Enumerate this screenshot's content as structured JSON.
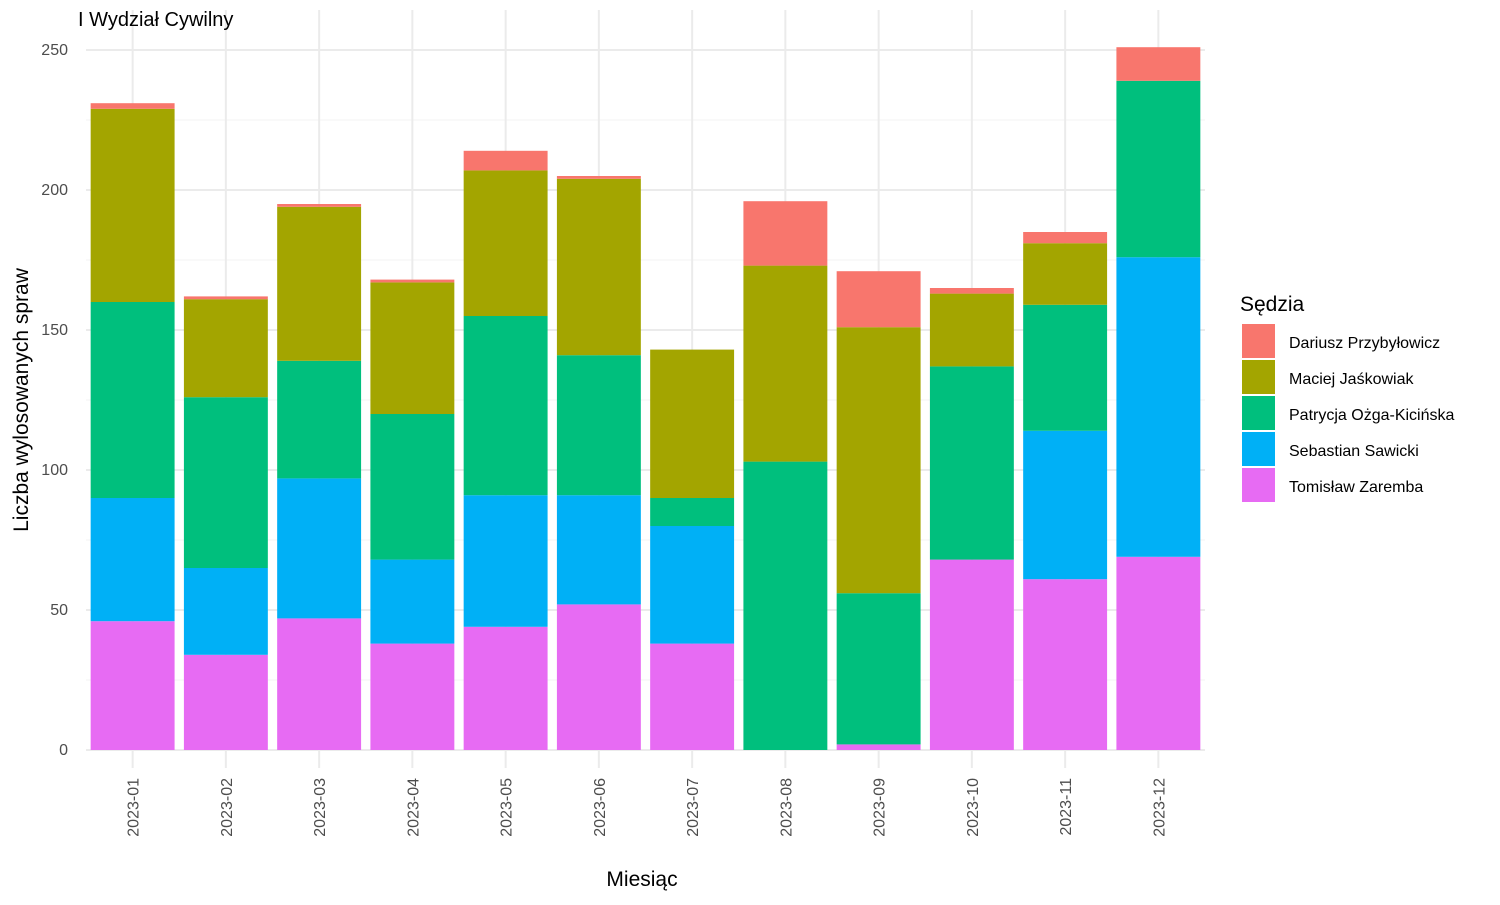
{
  "chart_data": {
    "type": "bar",
    "stacked": true,
    "title": "I Wydział Cywilny",
    "xlabel": "Miesiąc",
    "ylabel": "Liczba wylosowanych spraw",
    "ylim": [
      0,
      255
    ],
    "yticks": [
      0,
      50,
      100,
      150,
      200,
      250
    ],
    "grid": true,
    "legend": {
      "title": "Sędzia",
      "position": "right"
    },
    "categories": [
      "2023-01",
      "2023-02",
      "2023-03",
      "2023-04",
      "2023-05",
      "2023-06",
      "2023-07",
      "2023-08",
      "2023-09",
      "2023-10",
      "2023-11",
      "2023-12"
    ],
    "series": [
      {
        "name": "Tomisław Zaremba",
        "color": "#E76BF3",
        "values": [
          46,
          34,
          47,
          38,
          44,
          52,
          38,
          0,
          2,
          68,
          61,
          69
        ]
      },
      {
        "name": "Sebastian Sawicki",
        "color": "#00B0F6",
        "values": [
          44,
          31,
          50,
          30,
          47,
          39,
          42,
          0,
          0,
          0,
          53,
          107
        ]
      },
      {
        "name": "Patrycja Ożga-Kicińska",
        "color": "#00BF7D",
        "values": [
          70,
          61,
          42,
          52,
          64,
          50,
          10,
          103,
          54,
          69,
          45,
          63
        ]
      },
      {
        "name": "Maciej Jaśkowiak",
        "color": "#A3A500",
        "values": [
          69,
          35,
          55,
          47,
          52,
          63,
          53,
          70,
          95,
          26,
          22,
          0
        ]
      },
      {
        "name": "Dariusz Przybyłowicz",
        "color": "#F8766D",
        "values": [
          2,
          1,
          1,
          1,
          7,
          1,
          0,
          23,
          20,
          2,
          4,
          12
        ]
      }
    ],
    "legend_order": [
      "Dariusz Przybyłowicz",
      "Maciej Jaśkowiak",
      "Patrycja Ożga-Kicińska",
      "Sebastian Sawicki",
      "Tomisław Zaremba"
    ]
  }
}
